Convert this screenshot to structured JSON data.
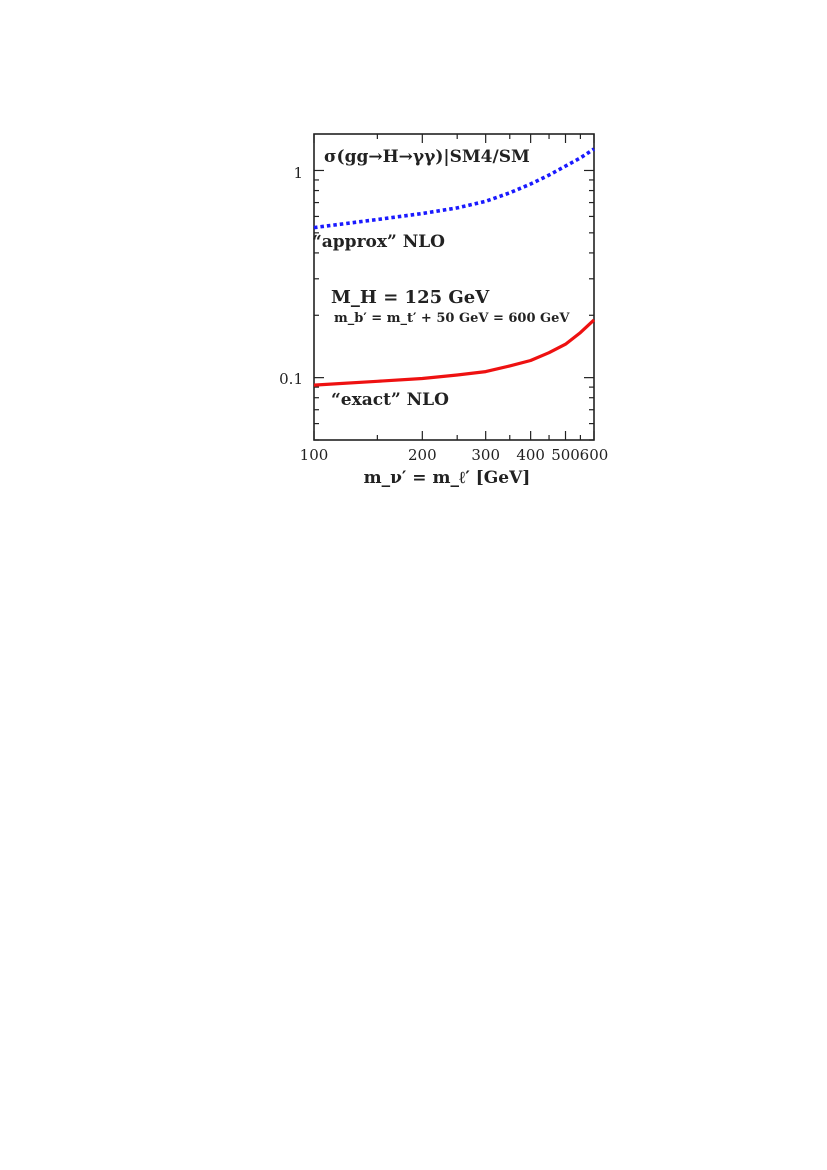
{
  "chart_data": {
    "type": "line",
    "title": "σ(gg→H→γγ)|SM4/SM",
    "xlabel": "m_ν′ = m_ℓ′ [GeV]",
    "ylabel": "",
    "x_scale": "log",
    "y_scale": "log",
    "xlim": [
      100,
      600
    ],
    "ylim": [
      0.05,
      1.5
    ],
    "x_ticks": [
      100,
      200,
      300,
      400,
      500,
      600
    ],
    "x_tick_labels": [
      "100",
      "200",
      "300",
      "400",
      "500",
      "600"
    ],
    "y_tick_labels": [
      "1",
      "0.1"
    ],
    "grid": false,
    "annotations": {
      "approx": "“approx” NLO",
      "exact": "“exact” NLO",
      "mh": "M_H = 125 GeV",
      "mb": "m_b′ = m_t′ + 50 GeV = 600 GeV"
    },
    "series": [
      {
        "name": "“approx” NLO",
        "color": "#1a1aff",
        "style": "dotted",
        "x": [
          100,
          150,
          200,
          250,
          300,
          350,
          400,
          450,
          500,
          550,
          600
        ],
        "y": [
          0.53,
          0.58,
          0.62,
          0.66,
          0.71,
          0.78,
          0.86,
          0.95,
          1.05,
          1.15,
          1.27
        ]
      },
      {
        "name": "“exact” NLO",
        "color": "#ee1111",
        "style": "solid",
        "x": [
          100,
          150,
          200,
          250,
          300,
          350,
          400,
          450,
          500,
          550,
          600
        ],
        "y": [
          0.092,
          0.096,
          0.099,
          0.103,
          0.107,
          0.114,
          0.121,
          0.132,
          0.145,
          0.165,
          0.19
        ]
      }
    ]
  }
}
